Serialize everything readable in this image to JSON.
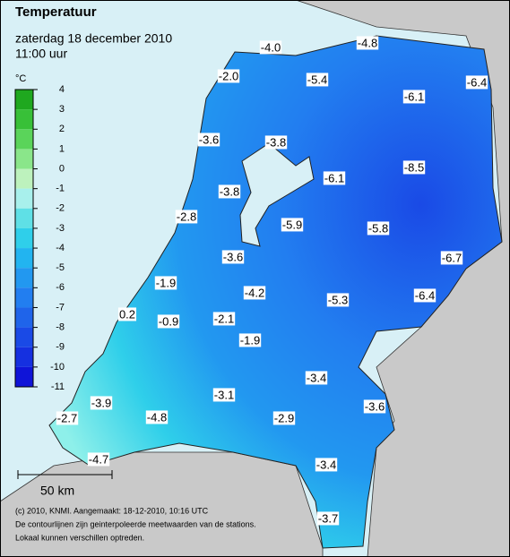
{
  "header": {
    "title": "Temperatuur",
    "subtitle": "zaterdag 18 december 2010",
    "time": "11:00 uur"
  },
  "legend": {
    "unit": "°C",
    "ticks": [
      4,
      3,
      2,
      1,
      0,
      -1,
      -2,
      -3,
      -4,
      -5,
      -6,
      -7,
      -8,
      -9,
      -10,
      -11
    ],
    "colors": [
      "#1fa81f",
      "#38c038",
      "#5ad45a",
      "#8ae68a",
      "#bdf2bd",
      "#a8f0ec",
      "#5fe0e6",
      "#2fcfea",
      "#22b4f0",
      "#2298f0",
      "#227ef0",
      "#1f64ea",
      "#1a4ae6",
      "#1530e0",
      "#0f14d8"
    ]
  },
  "stations": [
    "-4.0",
    "-4.8",
    "-2.0",
    "-5.4",
    "-6.1",
    "-6.4",
    "-3.6",
    "-3.8",
    "-6.1",
    "-8.5",
    "-3.8",
    "-2.8",
    "-5.9",
    "-5.8",
    "-6.7",
    "-3.6",
    "-1.9",
    "-4.2",
    "-5.3",
    "-6.4",
    "0.2",
    "-0.9",
    "-2.1",
    "-1.9",
    "-3.4",
    "-3.9",
    "-3.1",
    "-2.9",
    "-3.6",
    "-2.7",
    "-4.8",
    "-4.7",
    "-3.4",
    "-3.7"
  ],
  "scale": "50 km",
  "footer": [
    "(c) 2010, KNMI. Aangemaakt: 18-12-2010, 10:16 UTC",
    "De contourlijnen zijn geinterpoleerde meetwaarden van de stations.",
    "Lokaal kunnen verschillen optreden."
  ]
}
